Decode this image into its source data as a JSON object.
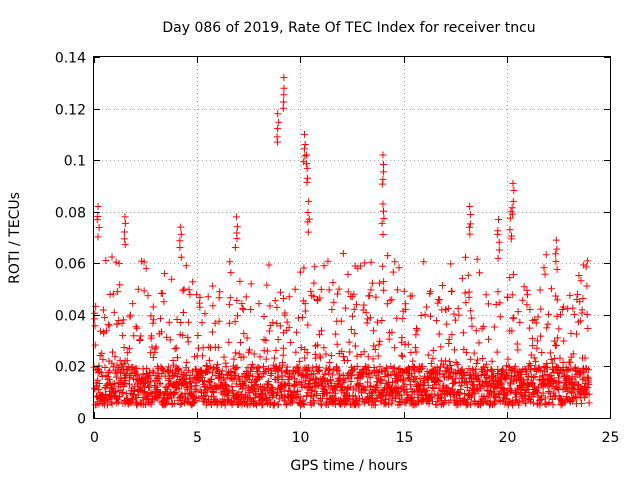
{
  "chart_data": {
    "type": "scatter",
    "title": "Day 086 of 2019, Rate Of TEC Index for receiver tncu",
    "xlabel": "GPS time / hours",
    "ylabel": "ROTI / TECUs",
    "xlim": [
      0,
      25
    ],
    "ylim": [
      0,
      0.14
    ],
    "x_ticks": [
      0,
      5,
      10,
      15,
      20,
      25
    ],
    "x_tick_labels": [
      "0",
      "5",
      "10",
      "15",
      "20",
      "25"
    ],
    "y_ticks": [
      0,
      0.02,
      0.04,
      0.06,
      0.08,
      0.1,
      0.12,
      0.14
    ],
    "y_tick_labels": [
      "0",
      "0.02",
      "0.04",
      "0.06",
      "0.08",
      "0.1",
      "0.12",
      "0.14"
    ],
    "grid": true,
    "marker": "+",
    "color": "#ff0000",
    "data_range_hours": [
      0,
      24
    ],
    "baseline_band": [
      0.005,
      0.02
    ],
    "notable_peaks": [
      {
        "x": 0.2,
        "y": 0.082
      },
      {
        "x": 1.5,
        "y": 0.078
      },
      {
        "x": 4.2,
        "y": 0.074
      },
      {
        "x": 6.9,
        "y": 0.078
      },
      {
        "x": 8.9,
        "y": 0.118
      },
      {
        "x": 9.2,
        "y": 0.132
      },
      {
        "x": 10.2,
        "y": 0.11
      },
      {
        "x": 10.3,
        "y": 0.102
      },
      {
        "x": 10.4,
        "y": 0.084
      },
      {
        "x": 14.0,
        "y": 0.102
      },
      {
        "x": 14.0,
        "y": 0.083
      },
      {
        "x": 18.2,
        "y": 0.082
      },
      {
        "x": 19.6,
        "y": 0.077
      },
      {
        "x": 20.3,
        "y": 0.091
      },
      {
        "x": 20.2,
        "y": 0.08
      },
      {
        "x": 22.4,
        "y": 0.069
      }
    ]
  }
}
